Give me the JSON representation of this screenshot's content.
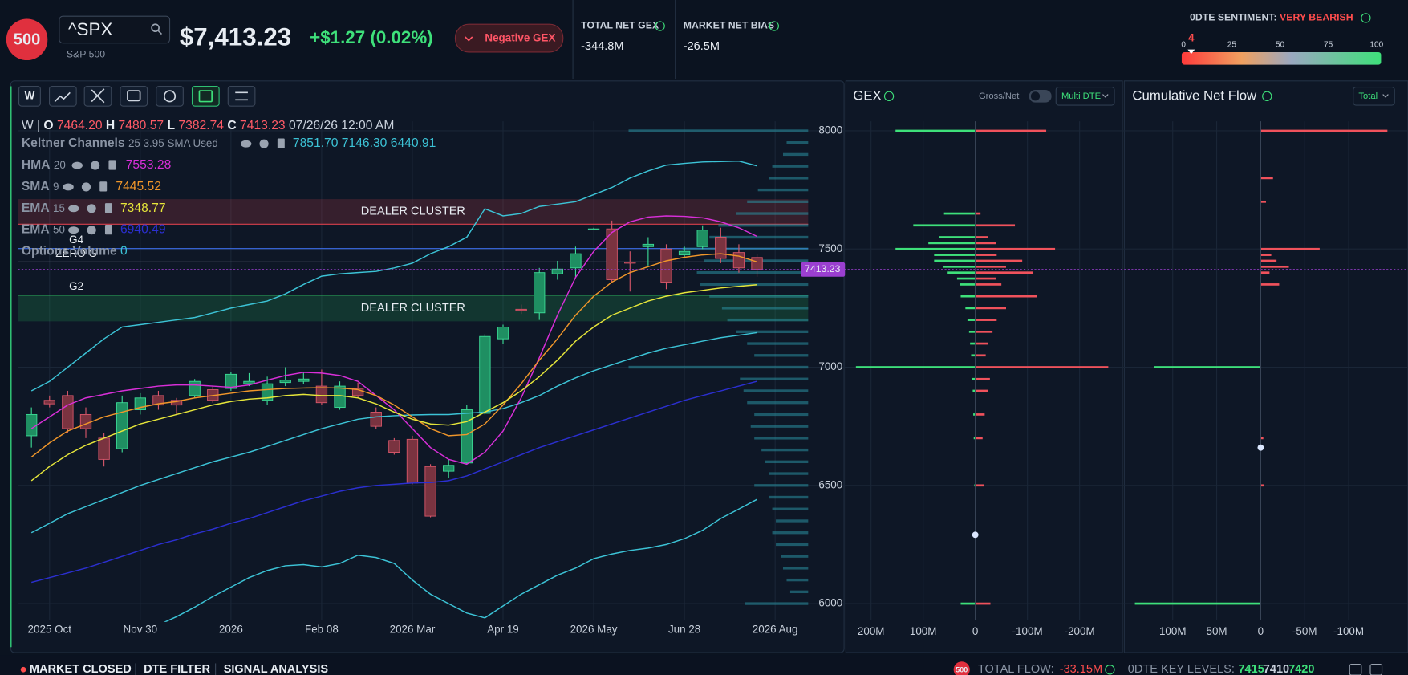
{
  "header": {
    "logo": "500",
    "symbol": "^SPX",
    "name": "S&P 500",
    "price": "$7,413.23",
    "change": "+$1.27 (0.02%)",
    "gex_badge": "Negative GEX",
    "stats": [
      {
        "label": "TOTAL NET GEX",
        "value": "-344.8M"
      },
      {
        "label": "MARKET NET BIAS",
        "value": "-26.5M"
      }
    ],
    "sentiment": {
      "label": "0DTE SENTIMENT:",
      "state": "VERY BEARISH",
      "value": 4,
      "xlim": [
        0,
        100
      ],
      "xticks": [
        0,
        25,
        50,
        75,
        100
      ]
    }
  },
  "toolbar": {
    "interval": "W"
  },
  "price_chart": {
    "type": "candlestick",
    "ohlc_legend": {
      "interval": "W |",
      "labels": [
        "O",
        "H",
        "L",
        "C"
      ],
      "values": [
        "7464.20",
        "7480.57",
        "7382.74",
        "7413.23"
      ],
      "date": "07/26/26 12:00 AM"
    },
    "categories": [
      null,
      "2025 Oct",
      null,
      null,
      null,
      null,
      "Nov 30",
      null,
      null,
      null,
      null,
      "2026",
      null,
      null,
      null,
      null,
      "Feb 08",
      null,
      null,
      null,
      null,
      "2026 Mar",
      null,
      null,
      null,
      null,
      "Apr 19",
      null,
      null,
      null,
      null,
      "2026 May",
      null,
      null,
      null,
      null,
      "Jun 28",
      null,
      null,
      null,
      null,
      "2026 Aug"
    ],
    "open": [
      6710,
      6860,
      6880,
      6800,
      6700,
      6655,
      6820,
      6880,
      6860,
      6880,
      6905,
      6910,
      6930,
      6860,
      6935,
      6940,
      6920,
      6830,
      6910,
      6810,
      6690,
      6695,
      6580,
      6560,
      6595,
      6805,
      7120,
      7245,
      7230,
      7395,
      7420,
      7585,
      7585,
      7445,
      7510,
      7500,
      7475,
      7510,
      7550,
      7485,
      7464.2,
      null
    ],
    "high": [
      6830,
      6880,
      6900,
      6830,
      6720,
      6880,
      6890,
      6900,
      6870,
      6950,
      6920,
      6980,
      6975,
      6960,
      7000,
      6980,
      6990,
      6940,
      6935,
      6830,
      6700,
      6710,
      6590,
      6610,
      6840,
      7140,
      7180,
      7265,
      7420,
      7450,
      7510,
      7590,
      7620,
      7490,
      7550,
      7520,
      7510,
      7600,
      7590,
      7520,
      7480.57,
      null
    ],
    "low": [
      6660,
      6830,
      6720,
      6700,
      6580,
      6640,
      6800,
      6820,
      6800,
      6870,
      6850,
      6900,
      6920,
      6840,
      6920,
      6930,
      6840,
      6820,
      6870,
      6740,
      6630,
      6505,
      6365,
      6530,
      6590,
      6800,
      7100,
      7225,
      7200,
      7370,
      7380,
      7580,
      7360,
      7320,
      7430,
      7330,
      7460,
      7500,
      7440,
      7400,
      7382.74,
      null
    ],
    "close": [
      6800,
      6845,
      6740,
      6740,
      6610,
      6850,
      6870,
      6840,
      6840,
      6940,
      6860,
      6970,
      6940,
      6930,
      6945,
      6950,
      6850,
      6920,
      6880,
      6750,
      6640,
      6510,
      6370,
      6585,
      6820,
      7130,
      7170,
      7240,
      7400,
      7415,
      7480,
      7585,
      7370,
      7440,
      7520,
      7360,
      7490,
      7580,
      7460,
      7420,
      7413.23,
      null
    ],
    "up_color": "#1f8f62",
    "down_color": "#7a3340",
    "indicators": [
      {
        "name": "Keltner Channels",
        "params": "25 3.95 SMA Used",
        "color": "#3cc3d6",
        "value_labels": [
          "7851.70",
          "7146.30",
          "6440.91"
        ],
        "lines": [
          {
            "values": [
              6900,
              6940,
              7000,
              7060,
              7120,
              7170,
              7180,
              7190,
              7200,
              7210,
              7230,
              7250,
              7265,
              7280,
              7310,
              7350,
              7385,
              7395,
              7400,
              7405,
              7420,
              7440,
              7480,
              7510,
              7550,
              7670,
              7640,
              7650,
              7680,
              7690,
              7700,
              7730,
              7760,
              7800,
              7830,
              7855,
              7862,
              7868,
              7870,
              7872,
              7851.7,
              null
            ]
          },
          {
            "values": [
              6300,
              6340,
              6380,
              6410,
              6440,
              6470,
              6500,
              6525,
              6550,
              6575,
              6600,
              6620,
              6640,
              6665,
              6690,
              6715,
              6740,
              6760,
              6780,
              6790,
              6795,
              6798,
              6800,
              6800,
              6805,
              6810,
              6825,
              6850,
              6880,
              6920,
              6955,
              6985,
              7010,
              7035,
              7060,
              7080,
              7095,
              7110,
              7125,
              7135,
              7146.3,
              null
            ]
          },
          {
            "values": [
              5650,
              5680,
              5720,
              5760,
              5800,
              5840,
              5880,
              5910,
              5945,
              5985,
              6030,
              6070,
              6110,
              6140,
              6160,
              6165,
              6155,
              6170,
              6205,
              6195,
              6170,
              6100,
              6040,
              6000,
              5960,
              5940,
              5990,
              6040,
              6080,
              6120,
              6150,
              6190,
              6210,
              6225,
              6235,
              6250,
              6275,
              6310,
              6360,
              6400,
              6440.91,
              null
            ]
          }
        ]
      },
      {
        "name": "HMA",
        "params": "20",
        "color": "#d92fd9",
        "values": [
          6740,
          6790,
          6840,
          6870,
          6885,
          6900,
          6910,
          6920,
          6925,
          6925,
          6920,
          6915,
          6925,
          6945,
          6965,
          6978,
          6975,
          6965,
          6940,
          6880,
          6820,
          6740,
          6660,
          6610,
          6590,
          6640,
          6730,
          6870,
          7040,
          7220,
          7380,
          7490,
          7570,
          7615,
          7635,
          7640,
          7638,
          7632,
          7615,
          7590,
          7553.28,
          null
        ]
      },
      {
        "name": "SMA",
        "params": "9",
        "color": "#f0962a",
        "values": [
          6620,
          6680,
          6730,
          6760,
          6790,
          6810,
          6830,
          6845,
          6855,
          6870,
          6880,
          6890,
          6900,
          6905,
          6910,
          6912,
          6913,
          6912,
          6905,
          6880,
          6840,
          6790,
          6740,
          6710,
          6715,
          6760,
          6840,
          6930,
          7030,
          7120,
          7220,
          7300,
          7360,
          7400,
          7425,
          7450,
          7465,
          7475,
          7480,
          7470,
          7445.52,
          null
        ]
      },
      {
        "name": "EMA",
        "params": "15",
        "color": "#e6e63a",
        "values": [
          6520,
          6580,
          6630,
          6670,
          6700,
          6730,
          6760,
          6780,
          6800,
          6820,
          6840,
          6855,
          6865,
          6870,
          6880,
          6885,
          6880,
          6880,
          6870,
          6845,
          6810,
          6780,
          6760,
          6755,
          6770,
          6810,
          6850,
          6900,
          6960,
          7030,
          7110,
          7170,
          7220,
          7250,
          7280,
          7300,
          7315,
          7325,
          7335,
          7342,
          7348.77,
          null
        ]
      },
      {
        "name": "EMA",
        "params": "50",
        "color": "#2b2fd0",
        "values": [
          6090,
          6110,
          6130,
          6150,
          6175,
          6200,
          6225,
          6250,
          6270,
          6295,
          6315,
          6340,
          6360,
          6385,
          6410,
          6435,
          6455,
          6475,
          6490,
          6500,
          6505,
          6510,
          6512,
          6520,
          6540,
          6570,
          6600,
          6630,
          6660,
          6685,
          6710,
          6735,
          6760,
          6785,
          6810,
          6835,
          6860,
          6880,
          6900,
          6920,
          6940.49,
          null
        ]
      }
    ],
    "options_volume": {
      "name": "Options Volume",
      "value": 0
    },
    "volume_profile": {
      "color": "#2a8fa0",
      "prices": [
        6000,
        6050,
        6100,
        6150,
        6200,
        6250,
        6300,
        6350,
        6400,
        6450,
        6500,
        6550,
        6600,
        6650,
        6700,
        6750,
        6800,
        6850,
        6900,
        6950,
        7000,
        7050,
        7100,
        7150,
        7200,
        7250,
        7300,
        7350,
        7400,
        7450,
        7500,
        7550,
        7600,
        7650,
        7700,
        7750,
        7800,
        7850,
        7900,
        7950,
        8000
      ],
      "values": [
        35,
        10,
        12,
        14,
        15,
        18,
        20,
        18,
        20,
        22,
        30,
        22,
        24,
        26,
        30,
        32,
        30,
        34,
        36,
        38,
        100,
        30,
        34,
        40,
        45,
        48,
        55,
        60,
        62,
        58,
        70,
        55,
        50,
        40,
        34,
        28,
        22,
        20,
        14,
        12,
        100
      ]
    },
    "clusters": [
      {
        "label": "DEALER CLUSTER",
        "from": 7605,
        "to": 7711,
        "color": "#d8404c"
      },
      {
        "label": "DEALER CLUSTER",
        "from": 7194,
        "to": 7305,
        "color": "#22b45a"
      }
    ],
    "levels": [
      {
        "label": "G4",
        "value": 7502,
        "color": "#3d6ee8"
      },
      {
        "label": "ZERO G",
        "value": 7445,
        "color": "#8b95a5"
      },
      {
        "label": "G2",
        "value": 7305,
        "color": "#3ad36a"
      }
    ],
    "price_color": "#9b3fd0",
    "ylim": [
      5930,
      8040
    ],
    "yticks": [
      6000,
      6500,
      7000,
      7500,
      8000
    ],
    "grid": true
  },
  "gex_chart": {
    "type": "bar",
    "title": "GEX",
    "toggle_label": "Gross/Net",
    "dropdown": "Multi DTE",
    "strikes": [
      8000,
      7650,
      7600,
      7550,
      7525,
      7500,
      7475,
      7450,
      7425,
      7400,
      7375,
      7350,
      7300,
      7250,
      7200,
      7150,
      7100,
      7050,
      7000,
      6950,
      6900,
      6800,
      6700,
      6500,
      6000
    ],
    "series": [
      {
        "color": "#3ee07a",
        "values": [
          153,
          60,
          119,
          70,
          90,
          153,
          79,
          79,
          62,
          53,
          35,
          30,
          28,
          19,
          15,
          12,
          10,
          8,
          229,
          6,
          5,
          4,
          3,
          2,
          28
        ]
      },
      {
        "color": "#f0525c",
        "values": [
          -136,
          -10,
          -76,
          -25,
          -40,
          -153,
          -41,
          -90,
          -59,
          -110,
          -40,
          -50,
          -119,
          -59,
          -41,
          -33,
          -24,
          -20,
          -255,
          -28,
          -24,
          -18,
          -14,
          -16,
          -29
        ]
      }
    ],
    "xlim": [
      231,
      -265
    ],
    "xticks": [
      {
        "value": 200,
        "label": "200M"
      },
      {
        "value": 100,
        "label": "100M"
      },
      0,
      {
        "value": -100,
        "label": "-100M"
      },
      {
        "value": -200,
        "label": "-200M"
      }
    ]
  },
  "flow_chart": {
    "type": "bar",
    "title": "Cumulative Net Flow",
    "dropdown": "Total",
    "strikes": [
      8000,
      7800,
      7700,
      7500,
      7475,
      7450,
      7425,
      7400,
      7350,
      7000,
      6700,
      6500,
      6000
    ],
    "values": [
      -144,
      -14,
      -6,
      -67,
      -12,
      -18,
      -32,
      -10,
      -21,
      121,
      -3,
      -4,
      143
    ],
    "positive_color": "#3ee07a",
    "negative_color": "#f0525c",
    "xlim": [
      151,
      -147
    ],
    "xticks": [
      {
        "value": 100,
        "label": "100M"
      },
      {
        "value": 50,
        "label": "50M"
      },
      0,
      {
        "value": -50,
        "label": "-50M"
      },
      {
        "value": -100,
        "label": "-100M"
      }
    ]
  },
  "footer": {
    "status": "MARKET CLOSED",
    "tabs": [
      "DTE FILTER",
      "SIGNAL ANALYSIS"
    ],
    "badge": "500",
    "flow_label": "TOTAL FLOW:",
    "flow_value": "-33.15M",
    "levels_label": "0DTE KEY LEVELS:",
    "levels": [
      "7415",
      "7410",
      "7420"
    ]
  }
}
